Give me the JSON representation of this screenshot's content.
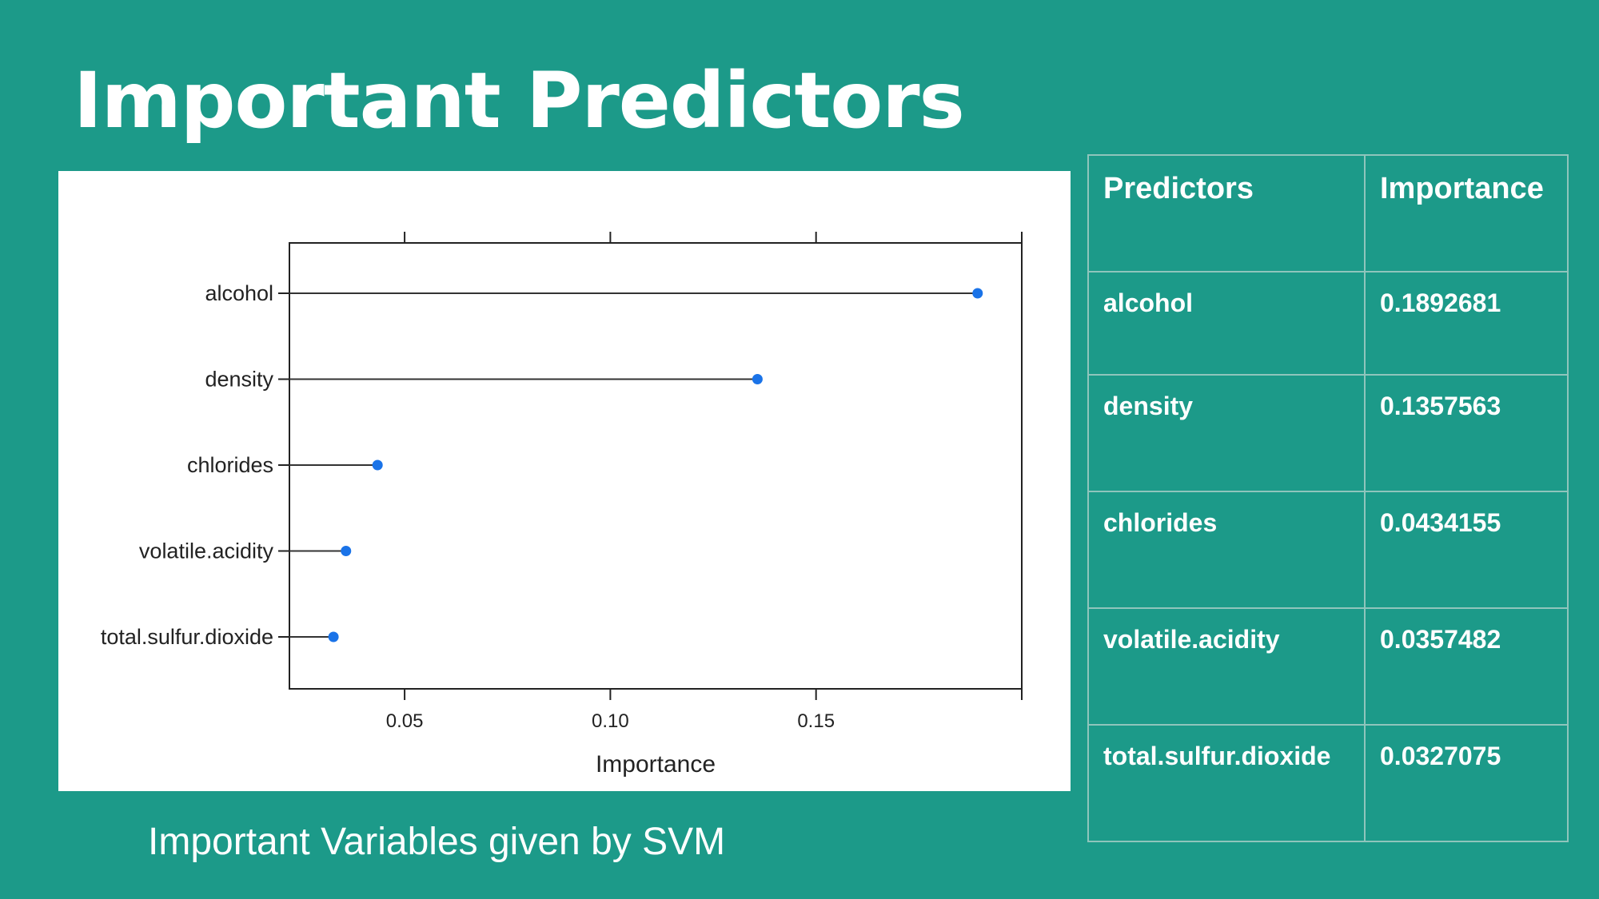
{
  "slide": {
    "title": "Important Predictors",
    "caption": "Important Variables given by SVM",
    "background_color": "#1c9a89"
  },
  "table": {
    "headers": [
      "Predictors",
      "Importance"
    ],
    "rows": [
      [
        "alcohol",
        "0.1892681"
      ],
      [
        "density",
        "0.1357563"
      ],
      [
        "chlorides",
        "0.0434155"
      ],
      [
        "volatile.acidity",
        "0.0357482"
      ],
      [
        "total.sulfur.dioxide",
        "0.0327075"
      ]
    ]
  },
  "chart_data": {
    "type": "scatter",
    "style": "dot-plot",
    "orientation": "horizontal",
    "categories": [
      "alcohol",
      "density",
      "chlorides",
      "volatile.acidity",
      "total.sulfur.dioxide"
    ],
    "values": [
      0.1892681,
      0.1357563,
      0.0434155,
      0.0357482,
      0.0327075
    ],
    "xlabel": "Importance",
    "ylabel": "",
    "x_ticks": [
      0.05,
      0.1,
      0.15
    ],
    "x_tick_labels": [
      "0.05",
      "0.10",
      "0.15"
    ],
    "xlim": [
      0.022,
      0.2
    ],
    "grid": false,
    "point_color": "#1a73e8",
    "line_color": "#333333"
  }
}
